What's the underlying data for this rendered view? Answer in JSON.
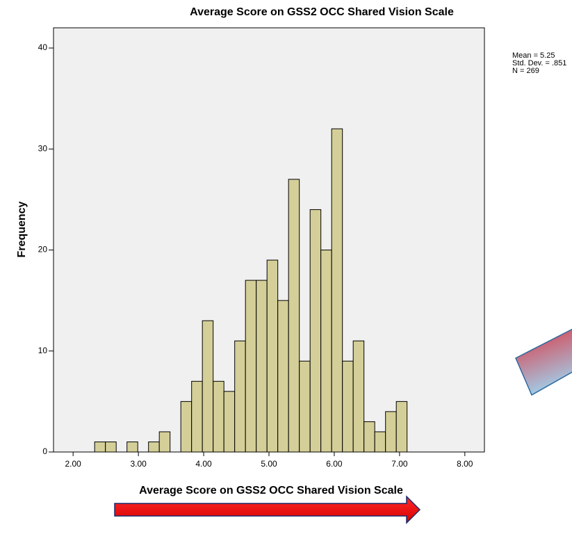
{
  "chart_data": {
    "type": "histogram",
    "title": "Average Score on GSS2 OCC Shared Vision Scale",
    "xlabel": "Average Score on GSS2 OCC Shared Vision Scale",
    "ylabel": "Frequency",
    "stats": [
      "Mean = 5.25",
      "Std. Dev. = .851",
      "N = 269"
    ],
    "bins": [
      2.33,
      2.495,
      2.66,
      2.825,
      2.99,
      3.155,
      3.32,
      3.485,
      3.65,
      3.815,
      3.98,
      4.145,
      4.31,
      4.475,
      4.64,
      4.805,
      4.97,
      5.135,
      5.3,
      5.465,
      5.63,
      5.795,
      5.96,
      6.125,
      6.29,
      6.455,
      6.62,
      6.785,
      6.95,
      7.115
    ],
    "values": [
      1,
      1,
      0,
      1,
      0,
      1,
      2,
      0,
      5,
      7,
      13,
      7,
      6,
      11,
      17,
      17,
      19,
      15,
      27,
      9,
      24,
      20,
      32,
      9,
      11,
      3,
      2,
      4,
      5
    ],
    "color": "#d4cf98",
    "xlim": [
      1.7,
      8.3
    ],
    "ylim": [
      0,
      42
    ],
    "xticks": [
      {
        "value": 2,
        "label": "2.00"
      },
      {
        "value": 3,
        "label": "3.00"
      },
      {
        "value": 4,
        "label": "4.00"
      },
      {
        "value": 5,
        "label": "5.00"
      },
      {
        "value": 6,
        "label": "6.00"
      },
      {
        "value": 7,
        "label": "7.00"
      },
      {
        "value": 8,
        "label": "8.00"
      }
    ],
    "yticks": [
      0,
      10,
      20,
      30,
      40
    ]
  }
}
